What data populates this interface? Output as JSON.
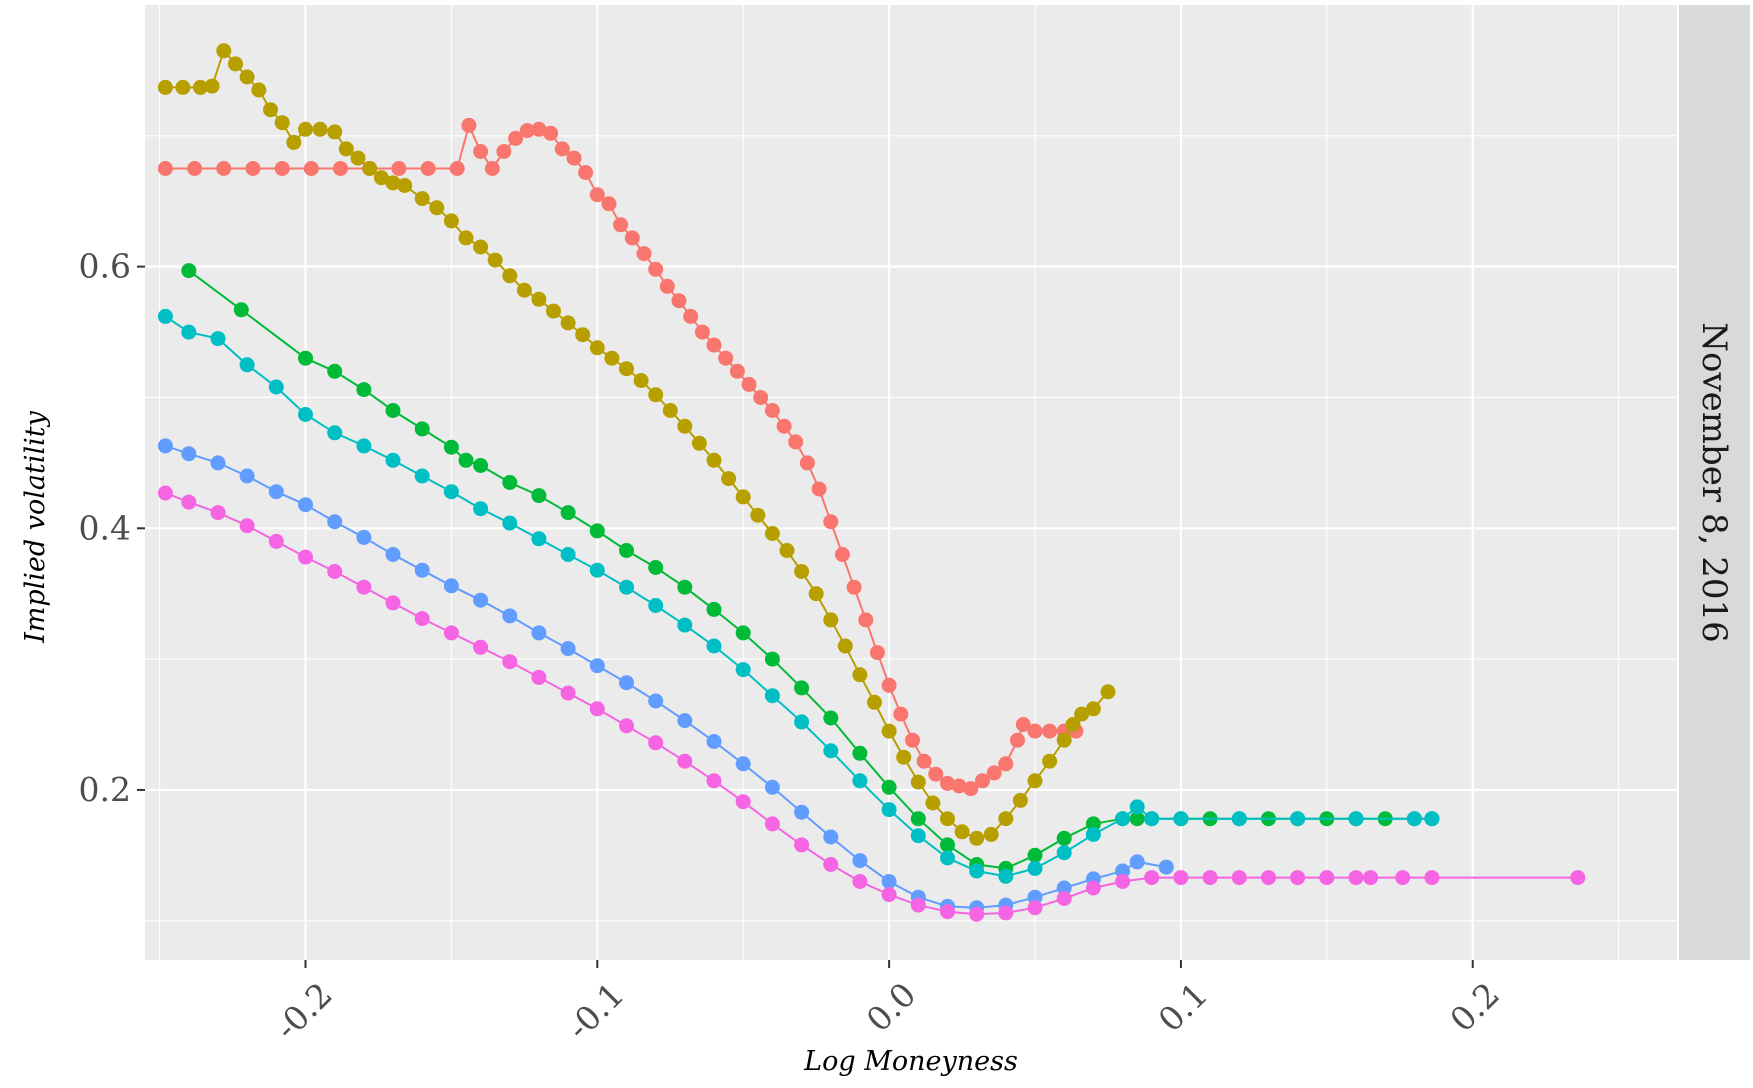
{
  "chart_data": {
    "type": "scatter",
    "xlabel": "Log Moneyness",
    "ylabel": "Implied volatility",
    "facet_label": "November 8, 2016",
    "xlim": [
      -0.255,
      0.27
    ],
    "ylim": [
      0.07,
      0.8
    ],
    "x_ticks": [
      -0.2,
      -0.1,
      0.0,
      0.1,
      0.2
    ],
    "x_tick_labels": [
      "-0.2",
      "-0.1",
      "0.0",
      "0.1",
      "0.2"
    ],
    "y_ticks": [
      0.2,
      0.4,
      0.6
    ],
    "y_tick_labels": [
      "0.2",
      "0.4",
      "0.6"
    ],
    "grid": true,
    "legend": "none",
    "series": [
      {
        "color": "#F8766D",
        "points": [
          [
            -0.248,
            0.675
          ],
          [
            -0.238,
            0.675
          ],
          [
            -0.228,
            0.675
          ],
          [
            -0.218,
            0.675
          ],
          [
            -0.208,
            0.675
          ],
          [
            -0.198,
            0.675
          ],
          [
            -0.188,
            0.675
          ],
          [
            -0.178,
            0.675
          ],
          [
            -0.168,
            0.675
          ],
          [
            -0.158,
            0.675
          ],
          [
            -0.148,
            0.675
          ],
          [
            -0.144,
            0.708
          ],
          [
            -0.14,
            0.688
          ],
          [
            -0.136,
            0.675
          ],
          [
            -0.132,
            0.688
          ],
          [
            -0.128,
            0.698
          ],
          [
            -0.124,
            0.704
          ],
          [
            -0.12,
            0.705
          ],
          [
            -0.116,
            0.702
          ],
          [
            -0.112,
            0.69
          ],
          [
            -0.108,
            0.683
          ],
          [
            -0.104,
            0.672
          ],
          [
            -0.1,
            0.655
          ],
          [
            -0.096,
            0.648
          ],
          [
            -0.092,
            0.632
          ],
          [
            -0.088,
            0.622
          ],
          [
            -0.084,
            0.61
          ],
          [
            -0.08,
            0.598
          ],
          [
            -0.076,
            0.585
          ],
          [
            -0.072,
            0.574
          ],
          [
            -0.068,
            0.562
          ],
          [
            -0.064,
            0.55
          ],
          [
            -0.06,
            0.54
          ],
          [
            -0.056,
            0.53
          ],
          [
            -0.052,
            0.52
          ],
          [
            -0.048,
            0.51
          ],
          [
            -0.044,
            0.5
          ],
          [
            -0.04,
            0.49
          ],
          [
            -0.036,
            0.478
          ],
          [
            -0.032,
            0.466
          ],
          [
            -0.028,
            0.45
          ],
          [
            -0.024,
            0.43
          ],
          [
            -0.02,
            0.405
          ],
          [
            -0.016,
            0.38
          ],
          [
            -0.012,
            0.355
          ],
          [
            -0.008,
            0.33
          ],
          [
            -0.004,
            0.305
          ],
          [
            0.0,
            0.28
          ],
          [
            0.004,
            0.258
          ],
          [
            0.008,
            0.238
          ],
          [
            0.012,
            0.222
          ],
          [
            0.016,
            0.212
          ],
          [
            0.02,
            0.205
          ],
          [
            0.024,
            0.203
          ],
          [
            0.028,
            0.201
          ],
          [
            0.032,
            0.207
          ],
          [
            0.036,
            0.213
          ],
          [
            0.04,
            0.22
          ],
          [
            0.044,
            0.238
          ],
          [
            0.046,
            0.25
          ],
          [
            0.05,
            0.245
          ],
          [
            0.055,
            0.245
          ],
          [
            0.06,
            0.245
          ],
          [
            0.064,
            0.245
          ]
        ]
      },
      {
        "color": "#B79F00",
        "points": [
          [
            -0.248,
            0.737
          ],
          [
            -0.242,
            0.737
          ],
          [
            -0.236,
            0.737
          ],
          [
            -0.232,
            0.738
          ],
          [
            -0.228,
            0.765
          ],
          [
            -0.224,
            0.755
          ],
          [
            -0.22,
            0.745
          ],
          [
            -0.216,
            0.735
          ],
          [
            -0.212,
            0.72
          ],
          [
            -0.208,
            0.71
          ],
          [
            -0.204,
            0.695
          ],
          [
            -0.2,
            0.705
          ],
          [
            -0.195,
            0.705
          ],
          [
            -0.19,
            0.703
          ],
          [
            -0.186,
            0.69
          ],
          [
            -0.182,
            0.683
          ],
          [
            -0.178,
            0.675
          ],
          [
            -0.174,
            0.668
          ],
          [
            -0.17,
            0.664
          ],
          [
            -0.166,
            0.662
          ],
          [
            -0.16,
            0.652
          ],
          [
            -0.155,
            0.645
          ],
          [
            -0.15,
            0.635
          ],
          [
            -0.145,
            0.622
          ],
          [
            -0.14,
            0.615
          ],
          [
            -0.135,
            0.605
          ],
          [
            -0.13,
            0.593
          ],
          [
            -0.125,
            0.582
          ],
          [
            -0.12,
            0.575
          ],
          [
            -0.115,
            0.566
          ],
          [
            -0.11,
            0.557
          ],
          [
            -0.105,
            0.548
          ],
          [
            -0.1,
            0.538
          ],
          [
            -0.095,
            0.53
          ],
          [
            -0.09,
            0.522
          ],
          [
            -0.085,
            0.513
          ],
          [
            -0.08,
            0.502
          ],
          [
            -0.075,
            0.49
          ],
          [
            -0.07,
            0.478
          ],
          [
            -0.065,
            0.465
          ],
          [
            -0.06,
            0.452
          ],
          [
            -0.055,
            0.438
          ],
          [
            -0.05,
            0.424
          ],
          [
            -0.045,
            0.41
          ],
          [
            -0.04,
            0.396
          ],
          [
            -0.035,
            0.383
          ],
          [
            -0.03,
            0.367
          ],
          [
            -0.025,
            0.35
          ],
          [
            -0.02,
            0.33
          ],
          [
            -0.015,
            0.31
          ],
          [
            -0.01,
            0.288
          ],
          [
            -0.005,
            0.267
          ],
          [
            0.0,
            0.245
          ],
          [
            0.005,
            0.225
          ],
          [
            0.01,
            0.206
          ],
          [
            0.015,
            0.19
          ],
          [
            0.02,
            0.178
          ],
          [
            0.025,
            0.168
          ],
          [
            0.03,
            0.163
          ],
          [
            0.035,
            0.166
          ],
          [
            0.04,
            0.178
          ],
          [
            0.045,
            0.192
          ],
          [
            0.05,
            0.207
          ],
          [
            0.055,
            0.222
          ],
          [
            0.06,
            0.238
          ],
          [
            0.063,
            0.25
          ],
          [
            0.066,
            0.258
          ],
          [
            0.07,
            0.262
          ],
          [
            0.075,
            0.275
          ]
        ]
      },
      {
        "color": "#00BA38",
        "points": [
          [
            -0.24,
            0.597
          ],
          [
            -0.222,
            0.567
          ],
          [
            -0.2,
            0.53
          ],
          [
            -0.19,
            0.52
          ],
          [
            -0.18,
            0.506
          ],
          [
            -0.17,
            0.49
          ],
          [
            -0.16,
            0.476
          ],
          [
            -0.15,
            0.462
          ],
          [
            -0.145,
            0.452
          ],
          [
            -0.14,
            0.448
          ],
          [
            -0.13,
            0.435
          ],
          [
            -0.12,
            0.425
          ],
          [
            -0.11,
            0.412
          ],
          [
            -0.1,
            0.398
          ],
          [
            -0.09,
            0.383
          ],
          [
            -0.08,
            0.37
          ],
          [
            -0.07,
            0.355
          ],
          [
            -0.06,
            0.338
          ],
          [
            -0.05,
            0.32
          ],
          [
            -0.04,
            0.3
          ],
          [
            -0.03,
            0.278
          ],
          [
            -0.02,
            0.255
          ],
          [
            -0.01,
            0.228
          ],
          [
            0.0,
            0.202
          ],
          [
            0.01,
            0.178
          ],
          [
            0.02,
            0.158
          ],
          [
            0.03,
            0.143
          ],
          [
            0.04,
            0.14
          ],
          [
            0.05,
            0.15
          ],
          [
            0.06,
            0.163
          ],
          [
            0.07,
            0.174
          ],
          [
            0.08,
            0.178
          ],
          [
            0.085,
            0.178
          ],
          [
            0.09,
            0.178
          ],
          [
            0.1,
            0.178
          ],
          [
            0.11,
            0.178
          ],
          [
            0.12,
            0.178
          ],
          [
            0.13,
            0.178
          ],
          [
            0.14,
            0.178
          ],
          [
            0.15,
            0.178
          ],
          [
            0.16,
            0.178
          ],
          [
            0.17,
            0.178
          ],
          [
            0.18,
            0.178
          ],
          [
            0.186,
            0.178
          ]
        ]
      },
      {
        "color": "#00BFC4",
        "points": [
          [
            -0.248,
            0.562
          ],
          [
            -0.24,
            0.55
          ],
          [
            -0.23,
            0.545
          ],
          [
            -0.22,
            0.525
          ],
          [
            -0.21,
            0.508
          ],
          [
            -0.2,
            0.487
          ],
          [
            -0.19,
            0.473
          ],
          [
            -0.18,
            0.463
          ],
          [
            -0.17,
            0.452
          ],
          [
            -0.16,
            0.44
          ],
          [
            -0.15,
            0.428
          ],
          [
            -0.14,
            0.415
          ],
          [
            -0.13,
            0.404
          ],
          [
            -0.12,
            0.392
          ],
          [
            -0.11,
            0.38
          ],
          [
            -0.1,
            0.368
          ],
          [
            -0.09,
            0.355
          ],
          [
            -0.08,
            0.341
          ],
          [
            -0.07,
            0.326
          ],
          [
            -0.06,
            0.31
          ],
          [
            -0.05,
            0.292
          ],
          [
            -0.04,
            0.272
          ],
          [
            -0.03,
            0.252
          ],
          [
            -0.02,
            0.23
          ],
          [
            -0.01,
            0.207
          ],
          [
            0.0,
            0.185
          ],
          [
            0.01,
            0.165
          ],
          [
            0.02,
            0.148
          ],
          [
            0.03,
            0.138
          ],
          [
            0.04,
            0.134
          ],
          [
            0.05,
            0.14
          ],
          [
            0.06,
            0.152
          ],
          [
            0.07,
            0.166
          ],
          [
            0.08,
            0.178
          ],
          [
            0.085,
            0.187
          ],
          [
            0.09,
            0.178
          ],
          [
            0.1,
            0.178
          ],
          [
            0.12,
            0.178
          ],
          [
            0.14,
            0.178
          ],
          [
            0.16,
            0.178
          ],
          [
            0.18,
            0.178
          ],
          [
            0.186,
            0.178
          ]
        ]
      },
      {
        "color": "#619CFF",
        "points": [
          [
            -0.248,
            0.463
          ],
          [
            -0.24,
            0.457
          ],
          [
            -0.23,
            0.45
          ],
          [
            -0.22,
            0.44
          ],
          [
            -0.21,
            0.428
          ],
          [
            -0.2,
            0.418
          ],
          [
            -0.19,
            0.405
          ],
          [
            -0.18,
            0.393
          ],
          [
            -0.17,
            0.38
          ],
          [
            -0.16,
            0.368
          ],
          [
            -0.15,
            0.356
          ],
          [
            -0.14,
            0.345
          ],
          [
            -0.13,
            0.333
          ],
          [
            -0.12,
            0.32
          ],
          [
            -0.11,
            0.308
          ],
          [
            -0.1,
            0.295
          ],
          [
            -0.09,
            0.282
          ],
          [
            -0.08,
            0.268
          ],
          [
            -0.07,
            0.253
          ],
          [
            -0.06,
            0.237
          ],
          [
            -0.05,
            0.22
          ],
          [
            -0.04,
            0.202
          ],
          [
            -0.03,
            0.183
          ],
          [
            -0.02,
            0.164
          ],
          [
            -0.01,
            0.146
          ],
          [
            0.0,
            0.13
          ],
          [
            0.01,
            0.118
          ],
          [
            0.02,
            0.111
          ],
          [
            0.03,
            0.11
          ],
          [
            0.04,
            0.112
          ],
          [
            0.05,
            0.118
          ],
          [
            0.06,
            0.125
          ],
          [
            0.07,
            0.132
          ],
          [
            0.08,
            0.138
          ],
          [
            0.085,
            0.145
          ],
          [
            0.095,
            0.141
          ]
        ]
      },
      {
        "color": "#F564E3",
        "points": [
          [
            -0.248,
            0.427
          ],
          [
            -0.24,
            0.42
          ],
          [
            -0.23,
            0.412
          ],
          [
            -0.22,
            0.402
          ],
          [
            -0.21,
            0.39
          ],
          [
            -0.2,
            0.378
          ],
          [
            -0.19,
            0.367
          ],
          [
            -0.18,
            0.355
          ],
          [
            -0.17,
            0.343
          ],
          [
            -0.16,
            0.331
          ],
          [
            -0.15,
            0.32
          ],
          [
            -0.14,
            0.309
          ],
          [
            -0.13,
            0.298
          ],
          [
            -0.12,
            0.286
          ],
          [
            -0.11,
            0.274
          ],
          [
            -0.1,
            0.262
          ],
          [
            -0.09,
            0.249
          ],
          [
            -0.08,
            0.236
          ],
          [
            -0.07,
            0.222
          ],
          [
            -0.06,
            0.207
          ],
          [
            -0.05,
            0.191
          ],
          [
            -0.04,
            0.174
          ],
          [
            -0.03,
            0.158
          ],
          [
            -0.02,
            0.143
          ],
          [
            -0.01,
            0.13
          ],
          [
            0.0,
            0.12
          ],
          [
            0.01,
            0.112
          ],
          [
            0.02,
            0.107
          ],
          [
            0.03,
            0.105
          ],
          [
            0.04,
            0.106
          ],
          [
            0.05,
            0.11
          ],
          [
            0.06,
            0.117
          ],
          [
            0.07,
            0.125
          ],
          [
            0.08,
            0.13
          ],
          [
            0.09,
            0.133
          ],
          [
            0.1,
            0.133
          ],
          [
            0.11,
            0.133
          ],
          [
            0.12,
            0.133
          ],
          [
            0.13,
            0.133
          ],
          [
            0.14,
            0.133
          ],
          [
            0.15,
            0.133
          ],
          [
            0.16,
            0.133
          ],
          [
            0.165,
            0.133
          ],
          [
            0.176,
            0.133
          ],
          [
            0.186,
            0.133
          ],
          [
            0.236,
            0.133
          ]
        ]
      }
    ]
  }
}
